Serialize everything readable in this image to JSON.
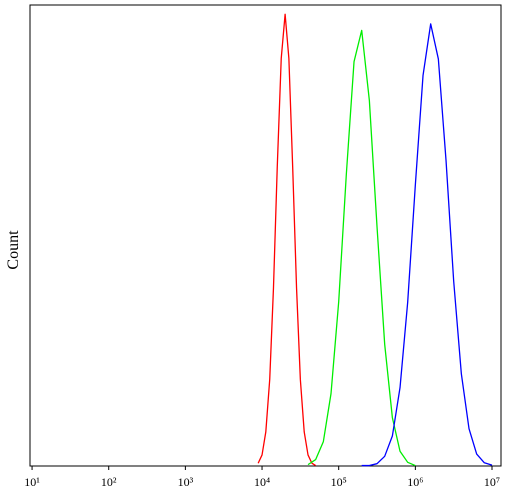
{
  "chart_data": {
    "type": "line",
    "y_label": "Count",
    "xscale": "log",
    "xlim": [
      9.4,
      13100000
    ],
    "ylim": [
      0,
      100
    ],
    "xticks": [
      {
        "value": 10,
        "label": "10¹"
      },
      {
        "value": 100,
        "label": "10²"
      },
      {
        "value": 1000,
        "label": "10³"
      },
      {
        "value": 10000,
        "label": "10⁴"
      },
      {
        "value": 100000,
        "label": "10⁵"
      },
      {
        "value": 1000000,
        "label": "10⁶"
      },
      {
        "value": 10000000,
        "label": "10⁷"
      }
    ],
    "series": [
      {
        "color": "#ff0000",
        "x": [
          8900,
          10000,
          11200,
          12600,
          14100,
          15800,
          17800,
          20000,
          22400,
          25100,
          28200,
          31600,
          35500,
          39800,
          44700,
          50100
        ],
        "values": [
          0.6,
          2.4,
          7.4,
          18.8,
          38.6,
          64.9,
          88.4,
          98,
          88.4,
          64.9,
          38.6,
          18.8,
          7.4,
          2.4,
          0.6,
          0.1
        ]
      },
      {
        "color": "#00ee00",
        "x": [
          39800,
          50100,
          63100,
          79400,
          100000,
          125900,
          158500,
          199500,
          251200,
          316200,
          398100,
          501200,
          631000,
          794300,
          1000000
        ],
        "values": [
          0.3,
          1.4,
          5.3,
          15.7,
          35.6,
          63.4,
          87.7,
          94.5,
          79.3,
          51.9,
          26.4,
          10.5,
          3.2,
          0.8,
          0.1
        ]
      },
      {
        "color": "#0000ff",
        "x": [
          199500,
          251200,
          316200,
          398100,
          501200,
          631000,
          794300,
          1000000,
          1258900,
          1584900,
          1995300,
          2511900,
          3162300,
          3981100,
          5011900,
          6309600,
          7943300,
          10000000
        ],
        "values": [
          0.1,
          0.1,
          0.5,
          2.1,
          6.5,
          17,
          35.5,
          61,
          84.7,
          95.9,
          88.3,
          66.3,
          40.1,
          20,
          8.1,
          2.6,
          0.7,
          0.2
        ]
      }
    ]
  }
}
